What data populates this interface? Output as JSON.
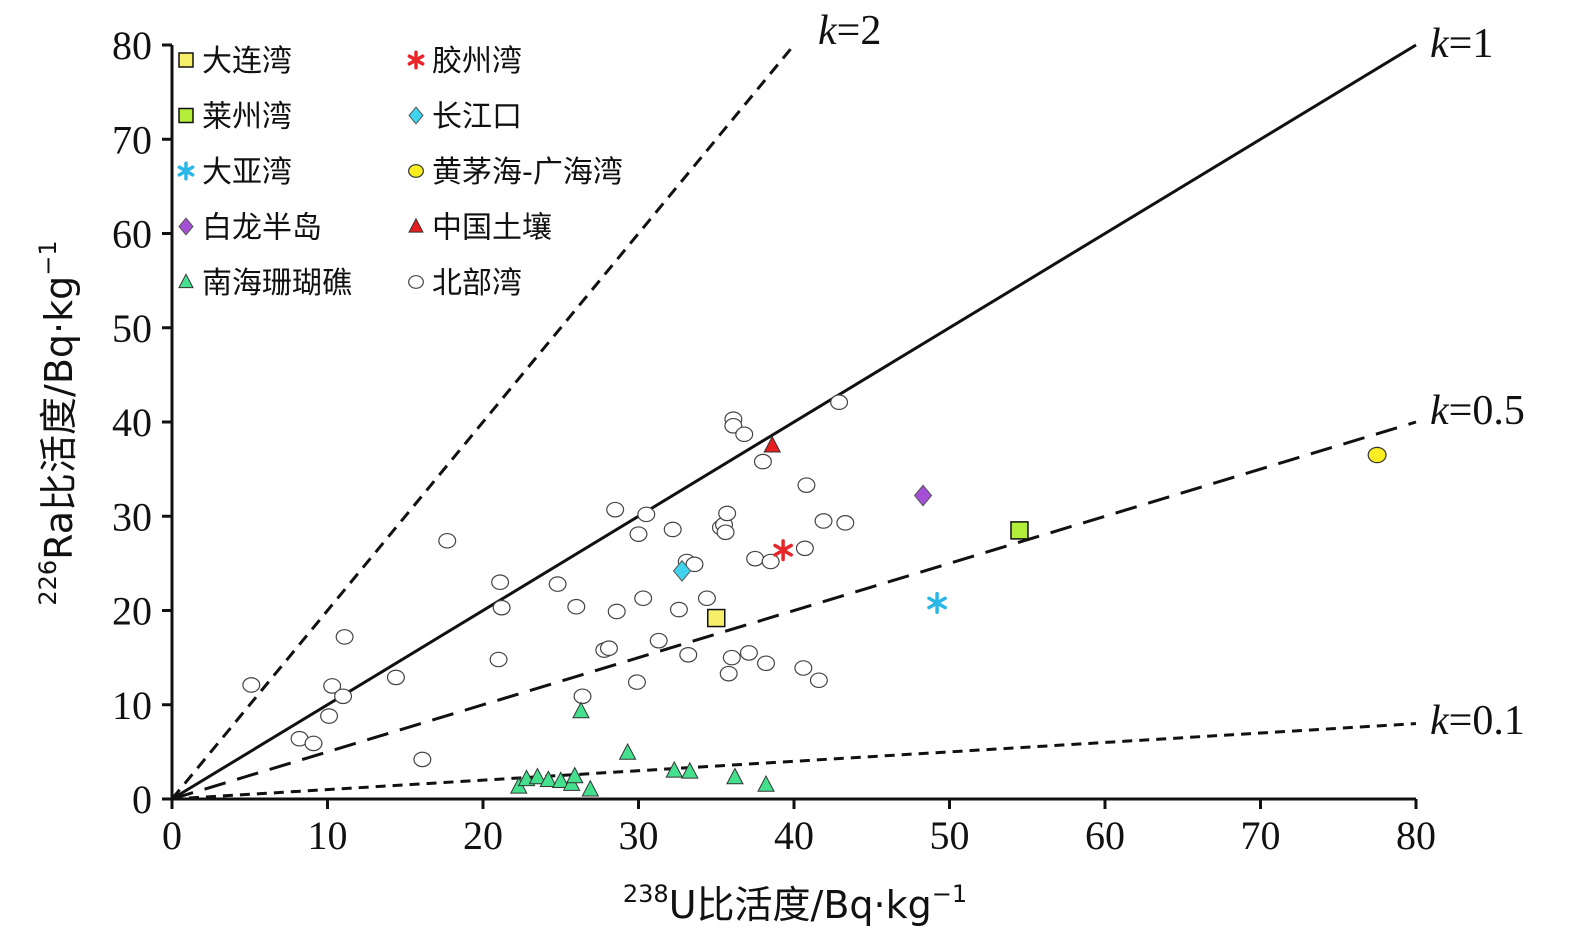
{
  "chart_data": {
    "type": "scatter",
    "xlabel": {
      "sup": "238",
      "main": "U比活度/Bq·kg",
      "unit_sup": "−1"
    },
    "ylabel": {
      "sup": "226",
      "main": "Ra比活度/Bq·kg",
      "unit_sup": "−1"
    },
    "xlim": [
      0,
      80
    ],
    "ylim": [
      0,
      80
    ],
    "xticks": [
      "0",
      "10",
      "20",
      "30",
      "40",
      "50",
      "60",
      "70",
      "80"
    ],
    "yticks": [
      "0",
      "10",
      "20",
      "30",
      "40",
      "50",
      "60",
      "70",
      "80"
    ],
    "grid": false,
    "legend_position": "top-left",
    "reference_lines": [
      {
        "k": 2,
        "label_k": "k",
        "label_val": "=2",
        "style": "dashed"
      },
      {
        "k": 1,
        "label_k": "k",
        "label_val": "=1",
        "style": "solid"
      },
      {
        "k": 0.5,
        "label_k": "k",
        "label_val": "=0.5",
        "style": "dashed"
      },
      {
        "k": 0.1,
        "label_k": "k",
        "label_val": "=0.1",
        "style": "dashed"
      }
    ],
    "series": [
      {
        "name": "大连湾",
        "marker": "square",
        "color": "#f7ee6a",
        "points": [
          [
            35.0,
            19.2
          ]
        ]
      },
      {
        "name": "莱州湾",
        "marker": "square",
        "color": "#b2ee3a",
        "points": [
          [
            54.5,
            28.5
          ]
        ]
      },
      {
        "name": "大亚湾",
        "marker": "asterisk",
        "color": "#2bb6e8",
        "points": [
          [
            49.2,
            20.8
          ]
        ]
      },
      {
        "name": "白龙半岛",
        "marker": "diamond",
        "color": "#a54fd6",
        "points": [
          [
            48.3,
            32.2
          ]
        ]
      },
      {
        "name": "南海珊瑚礁",
        "marker": "triangle",
        "color": "#44e08e",
        "points": [
          [
            22.3,
            1.3
          ],
          [
            22.8,
            2.1
          ],
          [
            23.5,
            2.3
          ],
          [
            24.2,
            2.0
          ],
          [
            25.0,
            1.9
          ],
          [
            25.7,
            1.6
          ],
          [
            25.9,
            2.4
          ],
          [
            26.3,
            9.3
          ],
          [
            26.9,
            1.0
          ],
          [
            29.3,
            4.9
          ],
          [
            32.3,
            3.0
          ],
          [
            33.3,
            2.9
          ],
          [
            36.2,
            2.3
          ],
          [
            38.2,
            1.5
          ]
        ]
      },
      {
        "name": "胶州湾",
        "marker": "asterisk",
        "color": "#e8262a",
        "points": [
          [
            39.3,
            26.4
          ]
        ]
      },
      {
        "name": "长江口",
        "marker": "diamond",
        "color": "#3fd3ef",
        "points": [
          [
            32.8,
            24.2
          ]
        ]
      },
      {
        "name": "黄茅海-广海湾",
        "marker": "circle",
        "color": "#f8ee22",
        "points": [
          [
            77.5,
            36.5
          ]
        ]
      },
      {
        "name": "中国土壤",
        "marker": "triangle",
        "color": "#e61e1e",
        "points": [
          [
            38.6,
            37.5
          ]
        ]
      },
      {
        "name": "北部湾",
        "marker": "circle-open",
        "color": "#ffffff",
        "points": [
          [
            5.1,
            12.1
          ],
          [
            8.2,
            6.4
          ],
          [
            9.1,
            5.9
          ],
          [
            10.1,
            8.8
          ],
          [
            10.3,
            12.0
          ],
          [
            11.0,
            10.9
          ],
          [
            11.1,
            17.2
          ],
          [
            14.4,
            12.9
          ],
          [
            16.1,
            4.2
          ],
          [
            17.7,
            27.4
          ],
          [
            21.0,
            14.8
          ],
          [
            21.1,
            23.0
          ],
          [
            21.2,
            20.3
          ],
          [
            24.8,
            22.8
          ],
          [
            26.0,
            20.4
          ],
          [
            26.4,
            10.9
          ],
          [
            27.8,
            15.8
          ],
          [
            28.1,
            16.0
          ],
          [
            28.5,
            30.7
          ],
          [
            28.6,
            19.9
          ],
          [
            29.9,
            12.4
          ],
          [
            30.0,
            28.1
          ],
          [
            30.3,
            21.3
          ],
          [
            30.5,
            30.2
          ],
          [
            31.3,
            16.8
          ],
          [
            32.2,
            28.6
          ],
          [
            32.6,
            20.1
          ],
          [
            33.1,
            25.2
          ],
          [
            33.2,
            15.3
          ],
          [
            33.6,
            24.9
          ],
          [
            34.4,
            21.3
          ],
          [
            35.3,
            28.8
          ],
          [
            35.5,
            29.1
          ],
          [
            35.6,
            28.3
          ],
          [
            35.7,
            30.3
          ],
          [
            35.8,
            13.3
          ],
          [
            36.0,
            15.0
          ],
          [
            36.1,
            40.3
          ],
          [
            36.1,
            39.6
          ],
          [
            36.8,
            38.7
          ],
          [
            37.1,
            15.5
          ],
          [
            37.5,
            25.5
          ],
          [
            38.0,
            35.8
          ],
          [
            38.2,
            14.4
          ],
          [
            38.5,
            25.2
          ],
          [
            40.6,
            13.9
          ],
          [
            40.7,
            26.6
          ],
          [
            40.8,
            33.3
          ],
          [
            41.6,
            12.6
          ],
          [
            41.9,
            29.5
          ],
          [
            42.9,
            42.1
          ],
          [
            43.3,
            29.3
          ]
        ]
      }
    ]
  }
}
